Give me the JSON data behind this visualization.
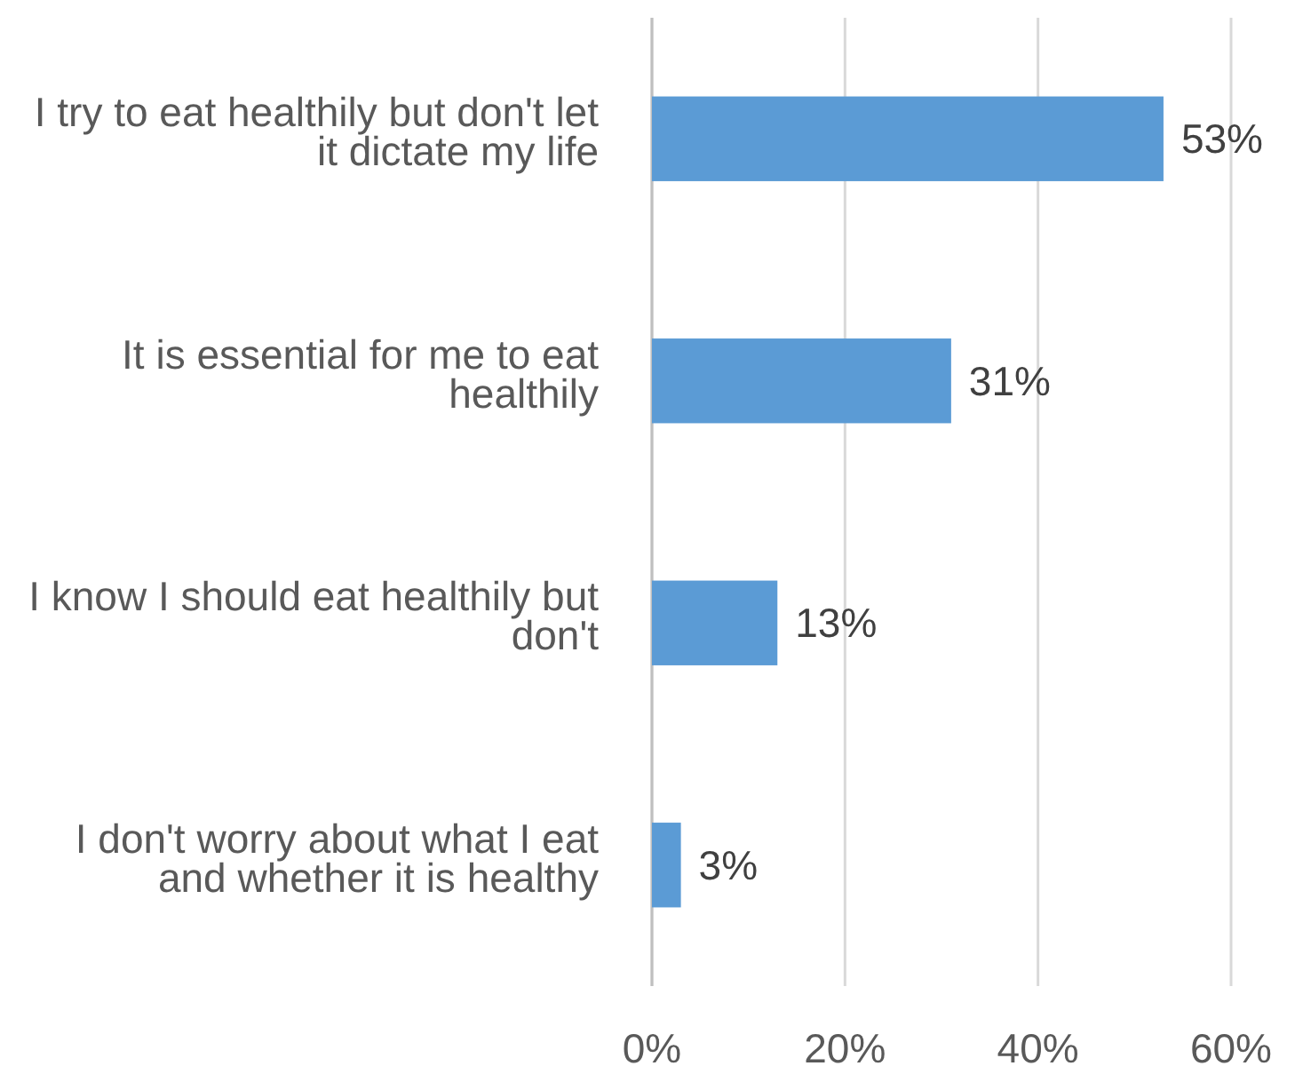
{
  "chart_data": {
    "type": "bar",
    "orientation": "horizontal",
    "categories": [
      "I try to eat healthily but don't let it dictate my life",
      "It is essential for me to eat healthily",
      "I know I should eat healthily but don't",
      "I don't worry about what I eat and whether it is healthy"
    ],
    "values": [
      53,
      31,
      13,
      3
    ],
    "value_labels": [
      "53%",
      "31%",
      "13%",
      "3%"
    ],
    "color": "#5b9bd5",
    "xlim": [
      0,
      60
    ],
    "xticks": [
      {
        "value": 0,
        "label": "0%"
      },
      {
        "value": 20,
        "label": "20%"
      },
      {
        "value": 40,
        "label": "40%"
      },
      {
        "value": 60,
        "label": "60%"
      }
    ],
    "grid": "x"
  }
}
